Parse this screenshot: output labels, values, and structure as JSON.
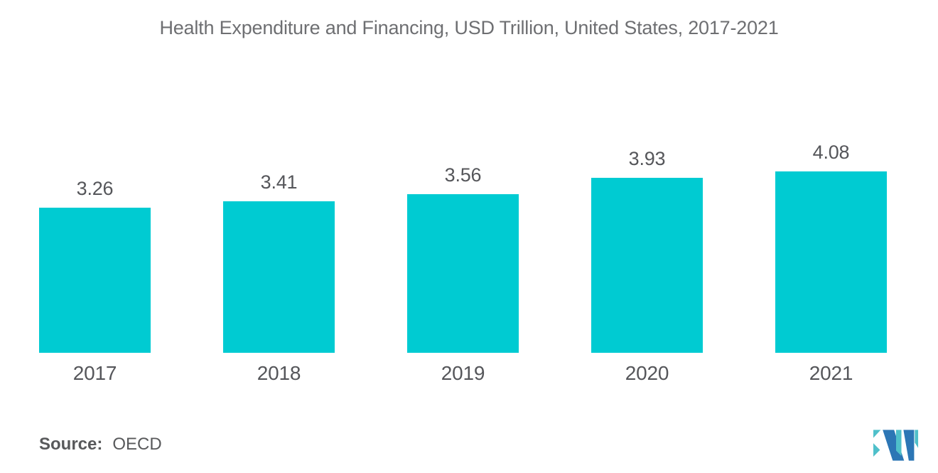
{
  "chart_data": {
    "type": "bar",
    "title": "Health Expenditure and Financing, USD Trillion, United States, 2017-2021",
    "categories": [
      "2017",
      "2018",
      "2019",
      "2020",
      "2021"
    ],
    "values": [
      3.26,
      3.41,
      3.56,
      3.93,
      4.08
    ],
    "value_labels": [
      "3.26",
      "3.41",
      "3.56",
      "3.93",
      "4.08"
    ],
    "xlabel": "",
    "ylabel": "",
    "ylim": [
      0,
      4.4
    ],
    "grid": false,
    "legend": "none",
    "bar_color": "#00CBD2"
  },
  "source": {
    "label": "Source:",
    "value": "OECD"
  },
  "logo": {
    "name": "mordor-intelligence-logo",
    "blue": "#2C76B5",
    "teal": "#4FC0CA"
  },
  "colors": {
    "background": "#FFFFFF",
    "title_text": "#6E6F72",
    "axis_text": "#55565A",
    "source_text": "#58595B"
  }
}
